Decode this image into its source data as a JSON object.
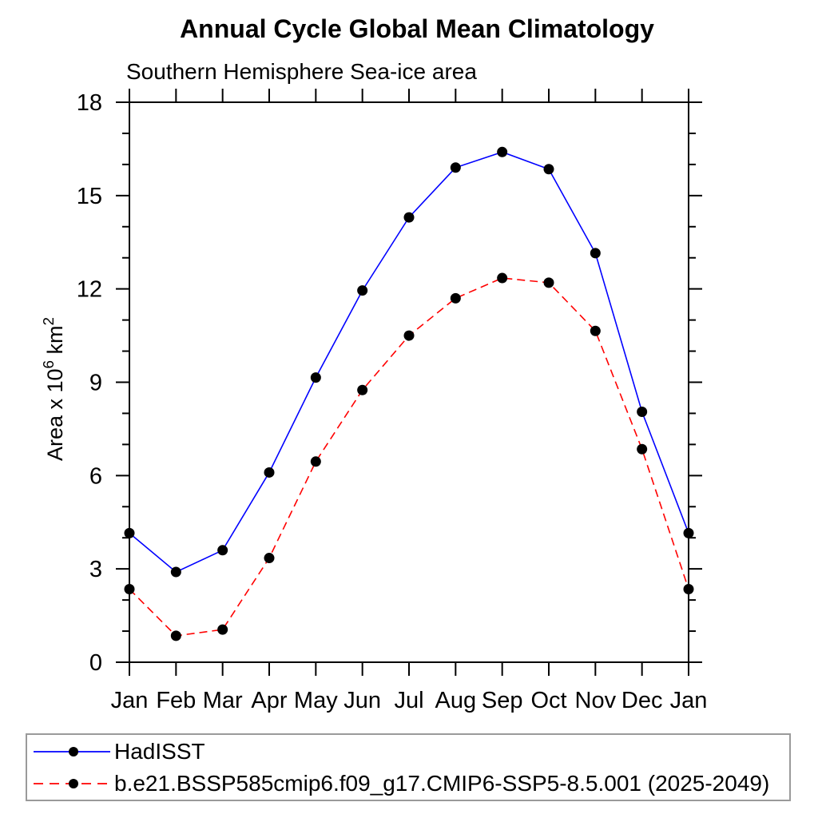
{
  "title": "Annual Cycle Global Mean Climatology",
  "subtitle": "Southern Hemisphere Sea-ice area",
  "chart_data": {
    "type": "line",
    "categories": [
      "Jan",
      "Feb",
      "Mar",
      "Apr",
      "May",
      "Jun",
      "Jul",
      "Aug",
      "Sep",
      "Oct",
      "Nov",
      "Dec",
      "Jan"
    ],
    "series": [
      {
        "name": "HadISST",
        "color": "#0000ff",
        "line_style": "solid",
        "marker": "filled-circle",
        "marker_color": "#000000",
        "values": [
          4.15,
          2.9,
          3.6,
          6.1,
          9.15,
          11.95,
          14.3,
          15.9,
          16.4,
          15.85,
          13.15,
          8.05,
          4.15
        ]
      },
      {
        "name": "b.e21.BSSP585cmip6.f09_g17.CMIP6-SSP5-8.5.001 (2025-2049)",
        "color": "#ff0000",
        "line_style": "dashed",
        "marker": "filled-circle",
        "marker_color": "#000000",
        "values": [
          2.35,
          0.85,
          1.05,
          3.35,
          6.45,
          8.75,
          10.5,
          11.7,
          12.35,
          12.2,
          10.65,
          6.85,
          2.35
        ]
      }
    ],
    "xlabel": "",
    "ylabel": "Area x 10⁶ km²",
    "ylabel_runs": [
      {
        "text": "Area x 10",
        "super": false
      },
      {
        "text": "6",
        "super": true
      },
      {
        "text": " km",
        "super": false
      },
      {
        "text": "2",
        "super": true
      }
    ],
    "ylim": [
      0,
      18
    ],
    "ytick_major": [
      0,
      3,
      6,
      9,
      12,
      15,
      18
    ],
    "ytick_minor_step": 1,
    "grid": false,
    "legend_position": "bottom-left",
    "axis_color": "#000000",
    "background_color": "#ffffff",
    "legend_border_color": "#9a9a9a"
  }
}
